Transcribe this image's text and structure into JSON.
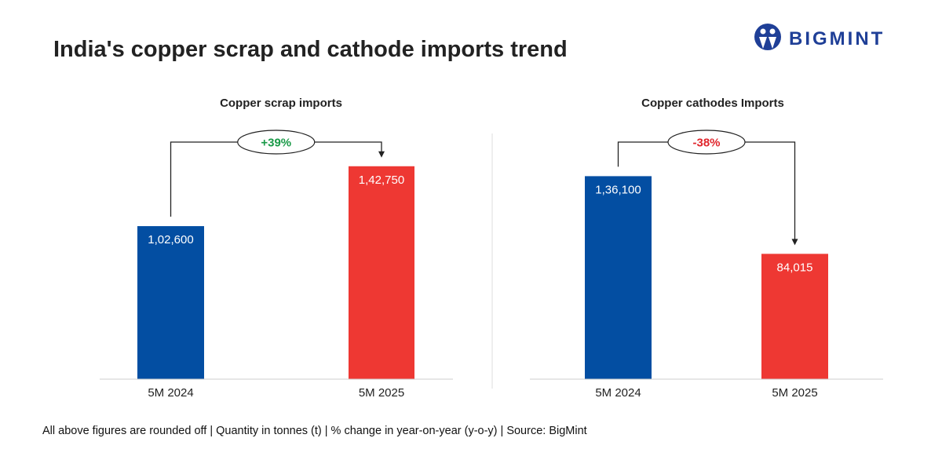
{
  "title": "India's copper scrap and cathode imports trend",
  "logo_text": "BIGMINT",
  "footnote": "All above figures are rounded off | Quantity in tonnes (t) | % change in year-on-year (y-o-y) | Source: BigMint",
  "colors": {
    "bar_2024": "#034ea2",
    "bar_2025": "#ee3833",
    "increase": "#1a9a48",
    "decrease": "#e0252c",
    "logo": "#1f3f97"
  },
  "chart_data": [
    {
      "type": "bar",
      "title": "Copper scrap imports",
      "categories": [
        "5M 2024",
        "5M 2025"
      ],
      "values": [
        102600,
        142750
      ],
      "value_labels": [
        "1,02,600",
        "1,42,750"
      ],
      "change_label": "+39%",
      "change_direction": "up",
      "ylim": [
        0,
        160000
      ],
      "grid": false
    },
    {
      "type": "bar",
      "title": "Copper cathodes Imports",
      "categories": [
        "5M 2024",
        "5M 2025"
      ],
      "values": [
        136100,
        84015
      ],
      "value_labels": [
        "1,36,100",
        "84,015"
      ],
      "change_label": "-38%",
      "change_direction": "down",
      "ylim": [
        0,
        160000
      ],
      "grid": false
    }
  ]
}
